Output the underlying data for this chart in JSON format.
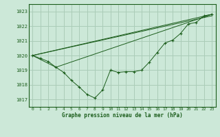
{
  "title": "Graphe pression niveau de la mer (hPa)",
  "bg_color": "#cce8d8",
  "grid_color": "#aaccb8",
  "line_color": "#1a5c1a",
  "ylim": [
    1016.5,
    1023.5
  ],
  "xlim": [
    -0.5,
    23.5
  ],
  "yticks": [
    1017,
    1018,
    1019,
    1020,
    1021,
    1022,
    1023
  ],
  "xticks": [
    0,
    1,
    2,
    3,
    4,
    5,
    6,
    7,
    8,
    9,
    10,
    11,
    12,
    13,
    14,
    15,
    16,
    17,
    18,
    19,
    20,
    21,
    22,
    23
  ],
  "series_main": {
    "x": [
      0,
      1,
      2,
      3,
      4,
      5,
      6,
      7,
      8,
      9,
      10,
      11,
      12,
      13,
      14,
      15,
      16,
      17,
      18,
      19,
      20,
      21,
      22,
      23
    ],
    "y": [
      1020.0,
      1019.8,
      1019.6,
      1019.2,
      1018.85,
      1018.3,
      1017.85,
      1017.35,
      1017.1,
      1017.65,
      1019.0,
      1018.85,
      1018.9,
      1018.9,
      1019.0,
      1019.55,
      1020.2,
      1020.85,
      1021.05,
      1021.5,
      1022.15,
      1022.25,
      1022.7,
      1022.8
    ]
  },
  "series_line1": {
    "x": [
      0,
      23
    ],
    "y": [
      1020.0,
      1022.8
    ]
  },
  "series_line2": {
    "x": [
      0,
      23
    ],
    "y": [
      1020.0,
      1022.7
    ]
  },
  "series_line3": {
    "x": [
      0,
      3,
      23
    ],
    "y": [
      1020.0,
      1019.2,
      1022.8
    ]
  }
}
